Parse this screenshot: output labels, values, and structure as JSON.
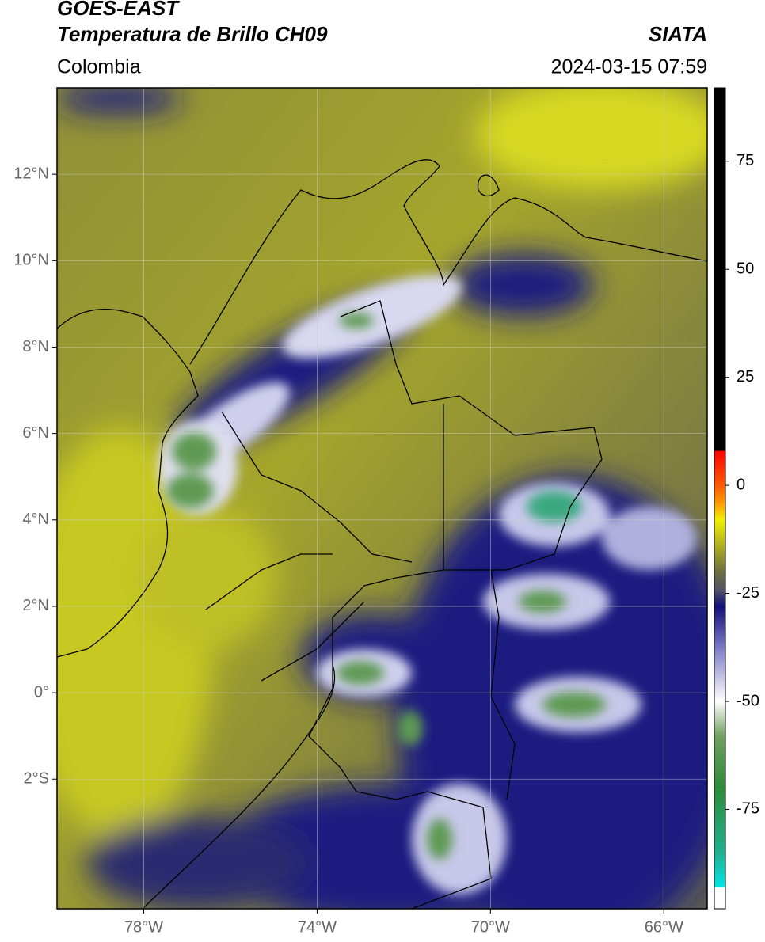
{
  "header": {
    "title": "GOES-EAST",
    "subtitle": "Temperatura de Brillo CH09",
    "source": "SIATA",
    "region": "Colombia",
    "datetime": "2024-03-15 07:59"
  },
  "map": {
    "xlim": [
      -80,
      -65
    ],
    "ylim": [
      -5,
      14
    ],
    "xticks": [
      {
        "value": -78,
        "label": "78°W"
      },
      {
        "value": -74,
        "label": "74°W"
      },
      {
        "value": -70,
        "label": "70°W"
      },
      {
        "value": -66,
        "label": "66°W"
      }
    ],
    "yticks": [
      {
        "value": 12,
        "label": "12°N"
      },
      {
        "value": 10,
        "label": "10°N"
      },
      {
        "value": 8,
        "label": "8°N"
      },
      {
        "value": 6,
        "label": "6°N"
      },
      {
        "value": 4,
        "label": "4°N"
      },
      {
        "value": 2,
        "label": "2°N"
      },
      {
        "value": 0,
        "label": "0°"
      },
      {
        "value": -2,
        "label": "2°S"
      }
    ],
    "grid": true
  },
  "colorbar": {
    "lim": [
      -98,
      92
    ],
    "ticks": [
      75,
      50,
      25,
      0,
      -25,
      -50,
      -75
    ],
    "colors": [
      {
        "value": -98,
        "color": "#ffffff"
      },
      {
        "value": -93,
        "color": "#ffffff"
      },
      {
        "value": -93,
        "color": "#00e5e5"
      },
      {
        "value": -85,
        "color": "#20b090"
      },
      {
        "value": -70,
        "color": "#2e8b3a"
      },
      {
        "value": -58,
        "color": "#70a060"
      },
      {
        "value": -50,
        "color": "#ffffff"
      },
      {
        "value": -38,
        "color": "#8080c8"
      },
      {
        "value": -28,
        "color": "#10107a"
      },
      {
        "value": -24,
        "color": "#555566"
      },
      {
        "value": -20,
        "color": "#6e6e40"
      },
      {
        "value": -8,
        "color": "#f0f000"
      },
      {
        "value": -4,
        "color": "#ff9900"
      },
      {
        "value": 0,
        "color": "#ff5a00"
      },
      {
        "value": 8,
        "color": "#ff0000"
      },
      {
        "value": 8,
        "color": "#000000"
      },
      {
        "value": 92,
        "color": "#000000"
      }
    ]
  }
}
